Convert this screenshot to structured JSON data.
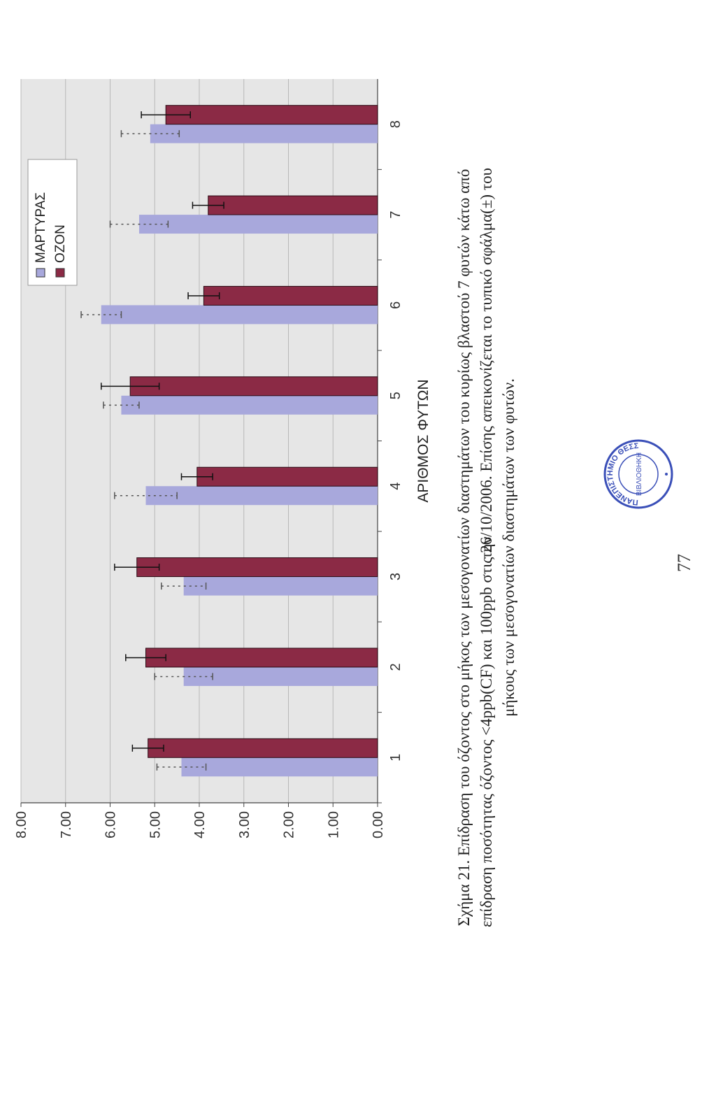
{
  "chart_data": {
    "type": "bar",
    "categories": [
      "1",
      "2",
      "3",
      "4",
      "5",
      "6",
      "7",
      "8"
    ],
    "series": [
      {
        "name": "ΜΑΡΤΥΡΑΣ",
        "color": "#a8a8dc",
        "values": [
          4.4,
          4.35,
          4.35,
          5.2,
          5.75,
          6.2,
          5.35,
          5.1
        ],
        "errors": [
          0.55,
          0.65,
          0.5,
          0.7,
          0.4,
          0.45,
          0.65,
          0.65
        ]
      },
      {
        "name": "ΟΖΟΝ",
        "color": "#8b2a45",
        "values": [
          5.15,
          5.2,
          5.4,
          4.05,
          5.55,
          3.9,
          3.8,
          4.75
        ],
        "errors": [
          0.35,
          0.45,
          0.5,
          0.35,
          0.65,
          0.35,
          0.35,
          0.55
        ]
      }
    ],
    "title": "",
    "xlabel": "ΑΡΙΘΜΟΣ ΦΥΤΩΝ",
    "ylabel": "",
    "ylim": [
      0,
      8
    ],
    "yticks": [
      "0.00",
      "1.00",
      "2.00",
      "3.00",
      "4.00",
      "5.00",
      "6.00",
      "7.00",
      "8.00"
    ],
    "grid": true,
    "legend": "top-right"
  },
  "caption": {
    "line1": "Σχήμα 21. Επίδραση του όζοντος στο μήκος των μεσογονατίων διαστημάτων του κυρίως βλαστού 7 φυτών κάτω από την",
    "line2": "επίδραση ποσότητας όζοντος <4ppb(CF) και 100ppb στις 26/10/2006. Επίσης απεικονίζεται το τυπικό σφάλμα(±) του",
    "line3": "μήκους των μεσογονατίων διαστημάτων των φυτών."
  },
  "page_number": "77",
  "stamp": {
    "text": "ΠΑΝΕΠΙΣΤΗΜΙΟ ΘΕΣΣΑΛΙΑΣ",
    "inner": "ΒΙΒΛΙΟΘΗΚΗ",
    "color": "#3a4fb8"
  }
}
